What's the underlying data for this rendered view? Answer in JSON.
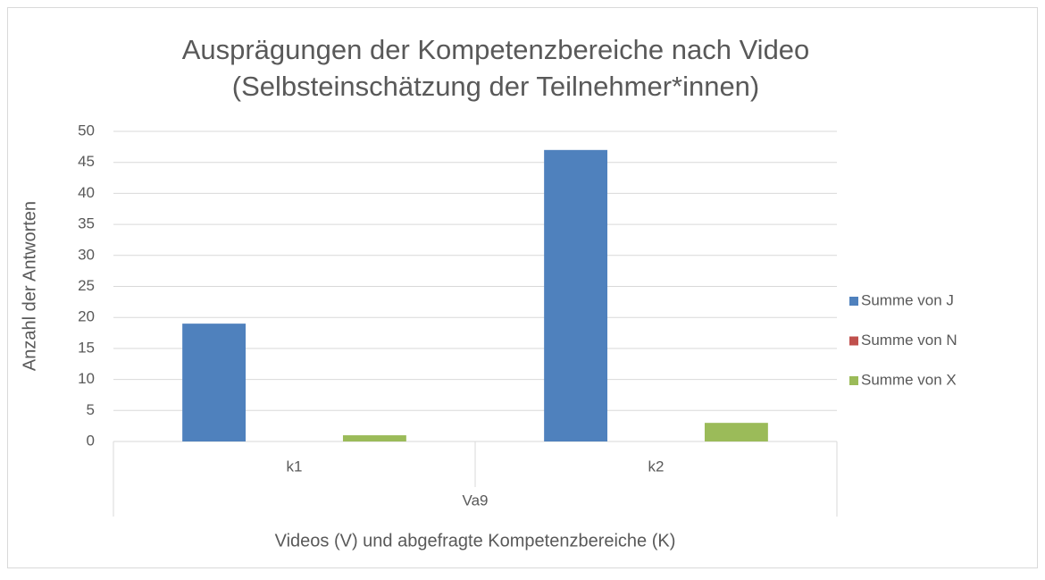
{
  "chart_data": {
    "type": "bar",
    "title": [
      "Ausprägungen der Kompetenzbereiche nach Video",
      "(Selbsteinschätzung der Teilnehmer*innen)"
    ],
    "x_label": "Videos (V) und abgefragte Kompetenzbereiche (K)",
    "y_label": "Anzahl der Antworten",
    "categories": [
      "k1",
      "k2"
    ],
    "category_group": "Va9",
    "series": [
      {
        "name": "Summe von J",
        "color": "#4f81bd",
        "values": [
          19,
          47
        ]
      },
      {
        "name": "Summe von N",
        "color": "#c0504d",
        "values": [
          0,
          0
        ]
      },
      {
        "name": "Summe von X",
        "color": "#9bbb59",
        "values": [
          1,
          3
        ]
      }
    ],
    "ylim": [
      0,
      50
    ],
    "yticks": [
      0,
      5,
      10,
      15,
      20,
      25,
      30,
      35,
      40,
      45,
      50
    ],
    "grid": true,
    "legend": "right"
  }
}
